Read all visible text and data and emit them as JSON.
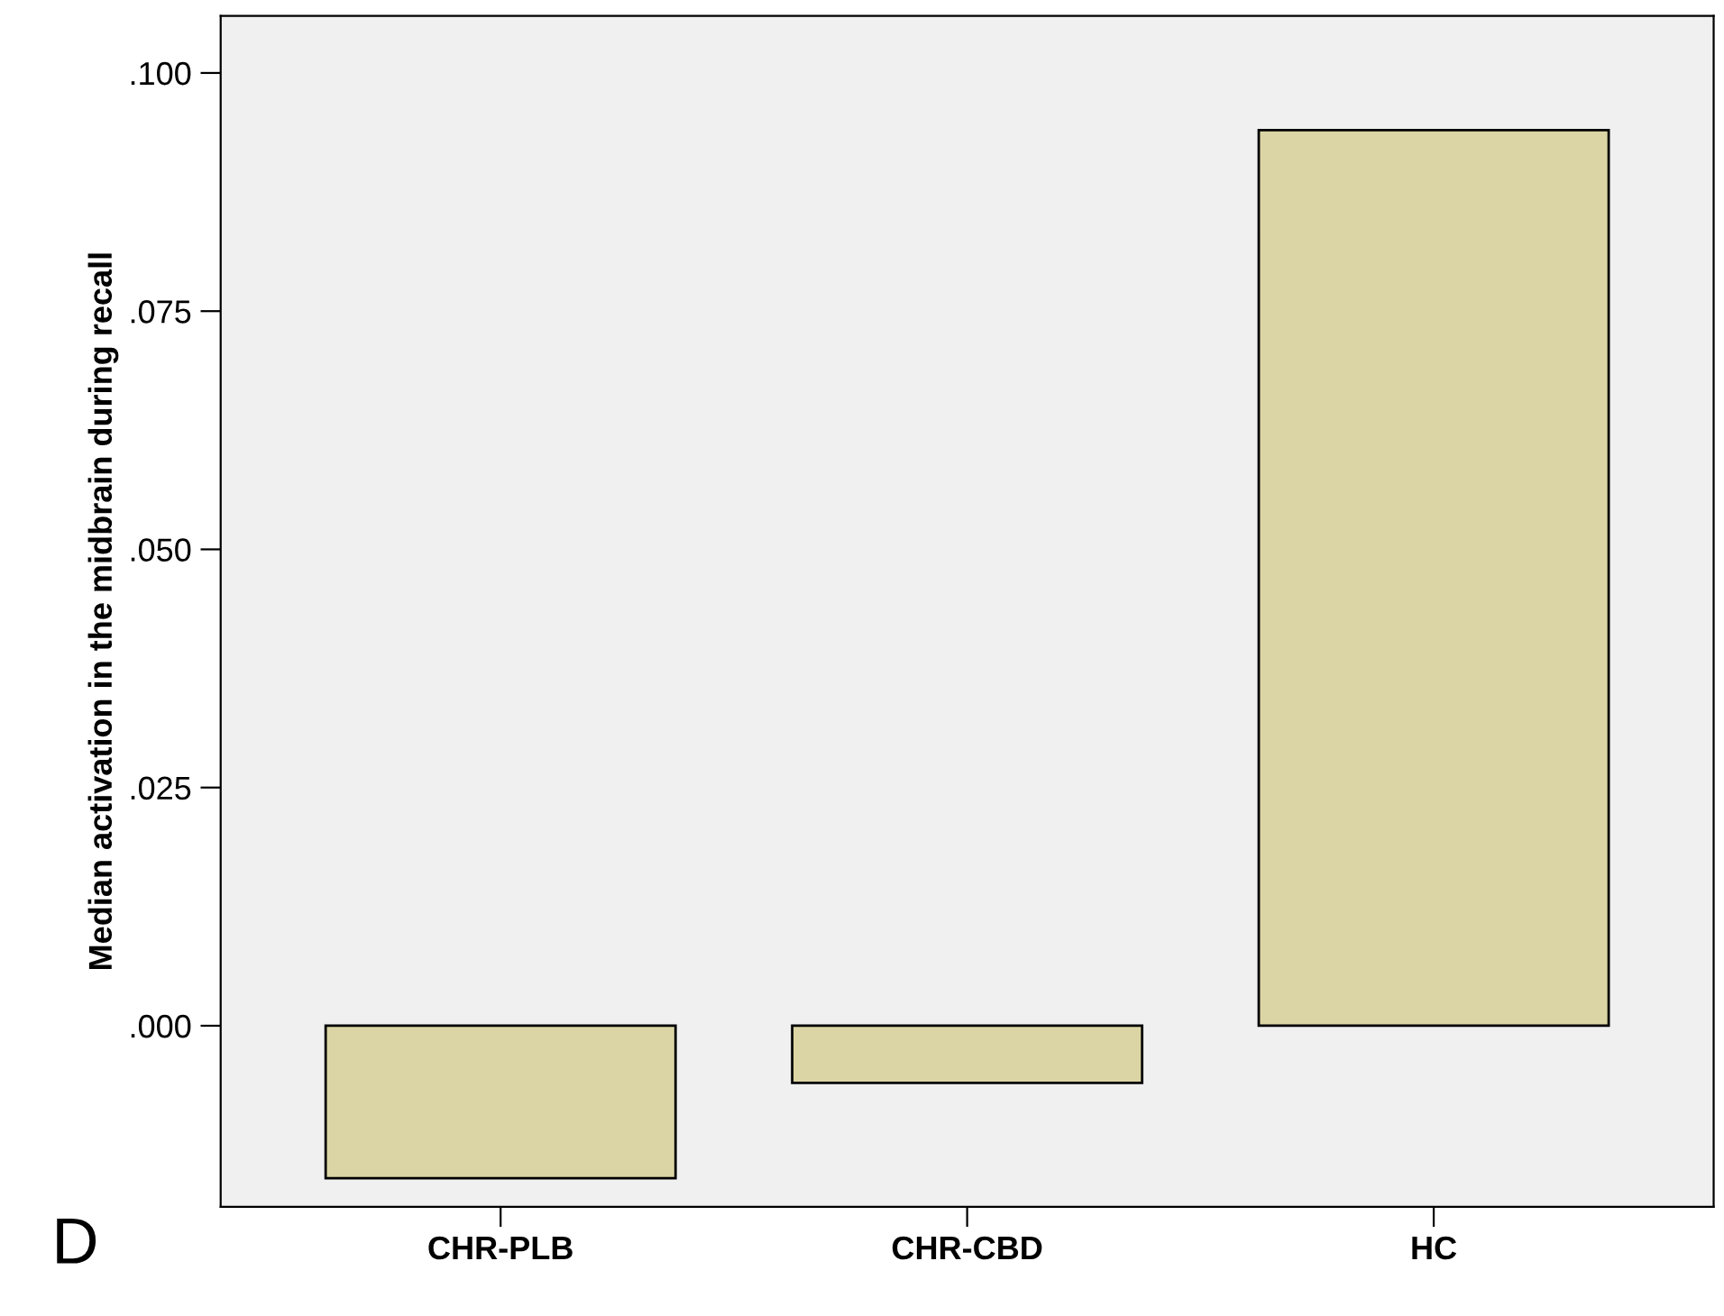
{
  "chart_data": {
    "type": "bar",
    "ylabel": "Median activation in the midbrain during recall",
    "categories": [
      "CHR-PLB",
      "CHR-CBD",
      "HC"
    ],
    "values": [
      -0.016,
      -0.006,
      0.094
    ],
    "color": "#dbd5a5",
    "ylim": [
      -0.019,
      0.106
    ],
    "yticks": [
      {
        "value": 0.0,
        "label": ".000"
      },
      {
        "value": 0.025,
        "label": ".025"
      },
      {
        "value": 0.05,
        "label": ".050"
      },
      {
        "value": 0.075,
        "label": ".075"
      },
      {
        "value": 0.1,
        "label": ".100"
      }
    ],
    "grid": false,
    "annotations": [
      "D"
    ]
  }
}
